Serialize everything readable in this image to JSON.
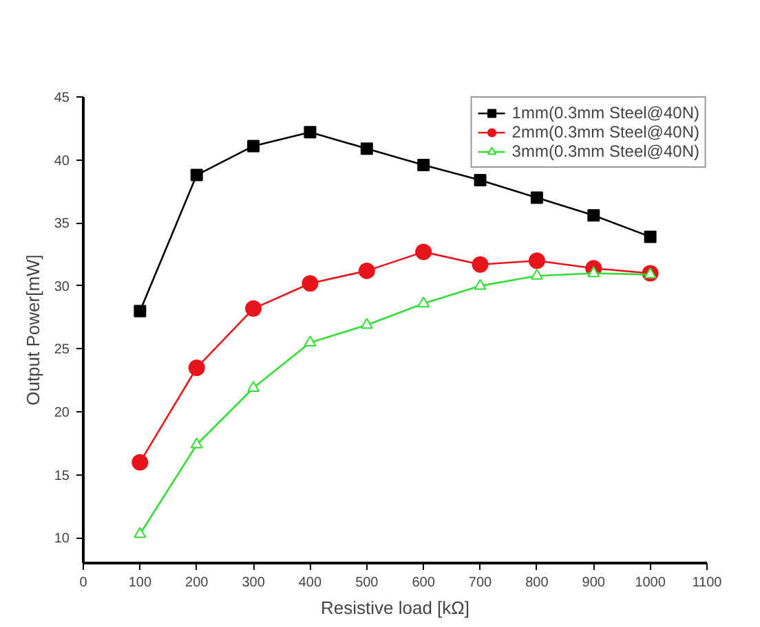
{
  "chart_data": {
    "type": "line",
    "xlabel": "Resistive load [kΩ]",
    "ylabel": "Output Power[mW]",
    "x": [
      100,
      200,
      300,
      400,
      500,
      600,
      700,
      800,
      900,
      1000
    ],
    "xlim": [
      0,
      1100
    ],
    "xticks": [
      0,
      100,
      200,
      300,
      400,
      500,
      600,
      700,
      800,
      900,
      1000,
      1100
    ],
    "ylim": [
      8,
      45
    ],
    "yticks": [
      10,
      15,
      20,
      25,
      30,
      35,
      40,
      45
    ],
    "grid": false,
    "legend": "top right",
    "series": [
      {
        "name": "1mm(0.3mm Steel@40N)",
        "color": "#000000",
        "marker": "square",
        "values": [
          28.0,
          38.8,
          41.1,
          42.2,
          40.9,
          39.6,
          38.4,
          37.0,
          35.6,
          33.9
        ]
      },
      {
        "name": "2mm(0.3mm Steel@40N)",
        "color": "#e8141c",
        "marker": "circle",
        "values": [
          16.0,
          23.5,
          28.2,
          30.2,
          31.2,
          32.7,
          31.7,
          32.0,
          31.4,
          31.0
        ]
      },
      {
        "name": "3mm(0.3mm Steel@40N)",
        "color": "#33dd33",
        "marker": "triangle",
        "values": [
          10.3,
          17.4,
          21.9,
          25.5,
          26.9,
          28.6,
          30.0,
          30.8,
          31.0,
          30.9
        ]
      }
    ]
  }
}
